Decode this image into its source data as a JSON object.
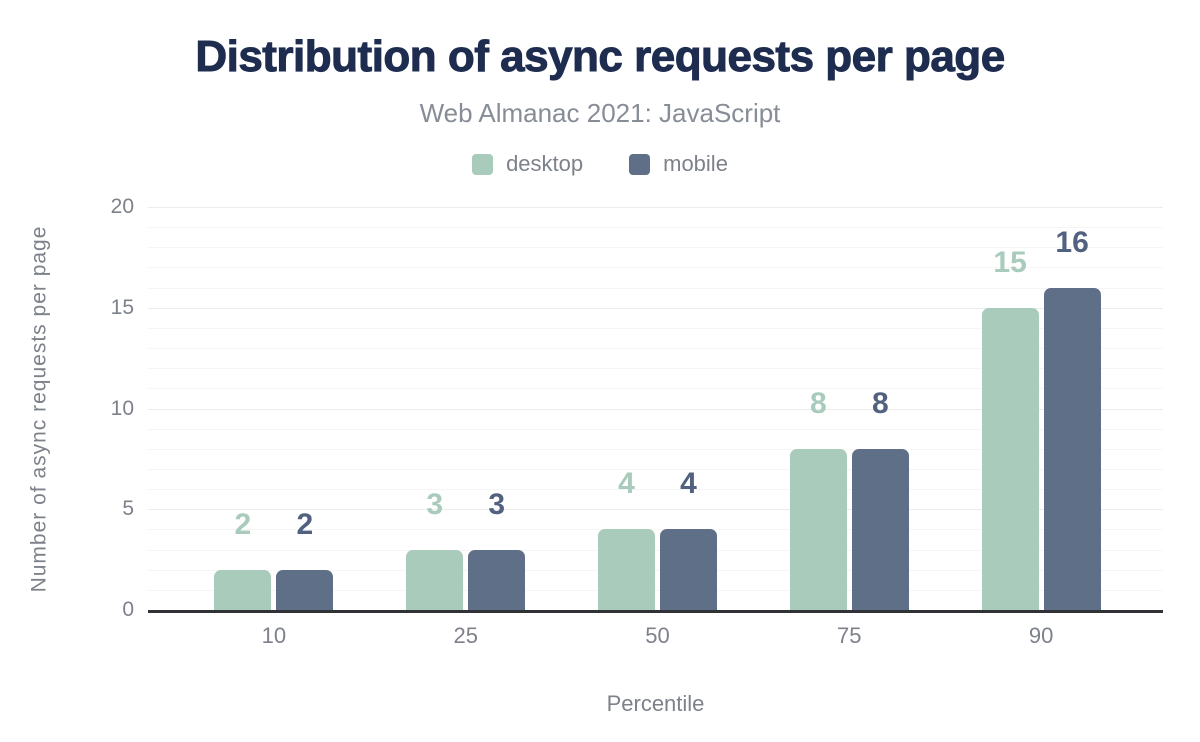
{
  "chart_data": {
    "type": "bar",
    "title": "Distribution of async requests per page",
    "subtitle": "Web Almanac 2021: JavaScript",
    "xlabel": "Percentile",
    "ylabel": "Number of async requests per page",
    "categories": [
      "10",
      "25",
      "50",
      "75",
      "90"
    ],
    "series": [
      {
        "name": "desktop",
        "color": "#a9cbbc",
        "label_color": "#a9cbbc",
        "values": [
          2,
          3,
          4,
          8,
          15
        ]
      },
      {
        "name": "mobile",
        "color": "#606f88",
        "label_color": "#52617f",
        "values": [
          2,
          3,
          4,
          8,
          16
        ]
      }
    ],
    "ylim": [
      0,
      20
    ],
    "yticks": [
      0,
      5,
      10,
      15,
      20
    ],
    "grid": "horizontal, minor every 1 unit, major every 5 units",
    "legend_position": "top",
    "bar_value_labels": "above bars, colored per series"
  },
  "colors": {
    "title": "#1e2c4f",
    "axis_line": "#313236",
    "text_muted": "#7d828a",
    "grid_major": "#ececec",
    "grid_minor": "#f5f5f5",
    "background": "#ffffff"
  }
}
